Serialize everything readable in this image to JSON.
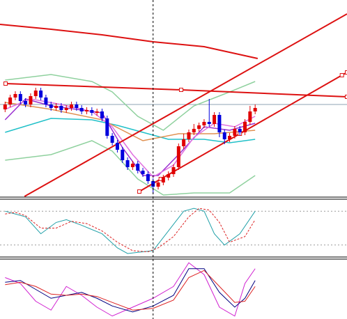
{
  "chart_data": [
    {
      "type": "candlestick",
      "xlim": [
        0,
        68
      ],
      "ylim": [
        0,
        282
      ],
      "up_color": "#e00000",
      "down_color": "#0000dd",
      "cursor_x": 30,
      "hline": {
        "value": 132,
        "color": "#8fa3b3"
      },
      "x": [
        1,
        2,
        3,
        4,
        5,
        6,
        7,
        8,
        9,
        10,
        11,
        12,
        13,
        14,
        15,
        16,
        17,
        18,
        19,
        20,
        21,
        22,
        23,
        24,
        25,
        26,
        27,
        28,
        29,
        30,
        31,
        32,
        33,
        34,
        35,
        36,
        37,
        38,
        39,
        40,
        41,
        42,
        43,
        44,
        45,
        46,
        47,
        48,
        49,
        50
      ],
      "open": [
        125,
        132,
        142,
        147,
        137,
        132,
        144,
        152,
        142,
        132,
        127,
        130,
        124,
        127,
        132,
        127,
        122,
        124,
        120,
        122,
        112,
        87,
        77,
        67,
        52,
        42,
        47,
        37,
        32,
        22,
        14,
        20,
        27,
        32,
        42,
        72,
        82,
        92,
        97,
        102,
        107,
        104,
        117,
        92,
        82,
        87,
        97,
        92,
        107,
        122
      ],
      "high": [
        136,
        146,
        151,
        151,
        141,
        148,
        156,
        156,
        146,
        136,
        134,
        134,
        131,
        136,
        136,
        131,
        128,
        128,
        126,
        126,
        116,
        91,
        81,
        71,
        56,
        51,
        51,
        41,
        36,
        26,
        24,
        31,
        36,
        46,
        76,
        90,
        96,
        104,
        106,
        111,
        140,
        121,
        121,
        96,
        91,
        101,
        101,
        111,
        130,
        132
      ],
      "low": [
        121,
        128,
        138,
        133,
        128,
        128,
        140,
        138,
        128,
        123,
        123,
        120,
        120,
        123,
        123,
        118,
        118,
        116,
        116,
        108,
        83,
        73,
        63,
        48,
        38,
        38,
        33,
        28,
        18,
        4,
        10,
        16,
        23,
        28,
        38,
        68,
        78,
        88,
        93,
        98,
        100,
        100,
        85,
        75,
        78,
        83,
        88,
        88,
        103,
        118
      ],
      "close": [
        132,
        142,
        147,
        137,
        132,
        144,
        152,
        142,
        132,
        127,
        130,
        124,
        127,
        132,
        127,
        122,
        124,
        120,
        122,
        112,
        87,
        77,
        67,
        52,
        42,
        47,
        37,
        32,
        22,
        14,
        20,
        27,
        32,
        42,
        72,
        82,
        92,
        97,
        102,
        107,
        104,
        117,
        92,
        82,
        87,
        97,
        92,
        107,
        122,
        127
      ],
      "lines": [
        {
          "color": "#8fd19e",
          "x": [
            1,
            10,
            18,
            22,
            27,
            32,
            38,
            45,
            50
          ],
          "values": [
            167,
            175,
            165,
            150,
            115,
            95,
            130,
            150,
            165
          ]
        },
        {
          "color": "#8fd19e",
          "x": [
            1,
            10,
            18,
            22,
            27,
            32,
            38,
            45,
            50
          ],
          "values": [
            52,
            60,
            80,
            65,
            25,
            2,
            5,
            5,
            30
          ]
        },
        {
          "color": "#20c0c8",
          "x": [
            1,
            10,
            18,
            23,
            28,
            33,
            40,
            45,
            50
          ],
          "values": [
            92,
            112,
            110,
            102,
            92,
            82,
            82,
            77,
            82
          ]
        },
        {
          "color": "#e09050",
          "x": [
            1,
            10,
            20,
            28,
            35,
            42,
            50
          ],
          "values": [
            135,
            125,
            110,
            80,
            90,
            90,
            95
          ]
        },
        {
          "color": "#9a30d0",
          "x": [
            1,
            5,
            10,
            15,
            20,
            24,
            28,
            31,
            35,
            40,
            45,
            50
          ],
          "values": [
            110,
            140,
            130,
            125,
            120,
            70,
            30,
            30,
            60,
            100,
            95,
            105
          ]
        },
        {
          "color": "#e070e0",
          "x": [
            1,
            6,
            12,
            18,
            22,
            26,
            30,
            34,
            38,
            42,
            46,
            50
          ],
          "values": [
            125,
            140,
            132,
            122,
            100,
            60,
            28,
            45,
            85,
            105,
            100,
            115
          ]
        },
        {
          "color": "#dd1111",
          "x": [
            0,
            10,
            20,
            30,
            40,
            50.5
          ],
          "values": [
            247,
            240,
            232,
            222,
            215,
            198
          ]
        },
        {
          "color": "#dd1111",
          "x": [
            1.1,
            35.5,
            68
          ],
          "values": [
            162,
            153,
            143
          ],
          "markers": true
        },
        {
          "color": "#dd1111",
          "x": [
            4.8,
            68
          ],
          "values": [
            0,
            262
          ]
        },
        {
          "color": "#dd1111",
          "x": [
            27.3,
            31.5,
            47,
            67,
            68
          ],
          "values": [
            7,
            25,
            90,
            174,
            178
          ],
          "markers": true
        }
      ]
    },
    {
      "type": "line",
      "xlim": [
        0,
        68
      ],
      "ylim": [
        0,
        100
      ],
      "levels": [
        80,
        20
      ],
      "series": [
        {
          "color": "#20a0a8",
          "dash": false,
          "x": [
            1,
            3,
            5,
            8,
            11,
            13,
            16,
            20,
            23,
            25,
            28,
            30,
            33,
            36,
            38,
            40,
            42,
            44,
            47,
            50
          ],
          "values": [
            80,
            75,
            70,
            40,
            60,
            65,
            55,
            40,
            15,
            5,
            8,
            10,
            45,
            80,
            85,
            80,
            40,
            20,
            40,
            80
          ]
        },
        {
          "color": "#dd2222",
          "dash": true,
          "x": [
            1,
            3,
            5,
            8,
            11,
            14,
            17,
            20,
            23,
            26,
            29,
            31,
            34,
            37,
            39,
            41,
            43,
            45,
            48,
            50
          ],
          "values": [
            75,
            78,
            72,
            50,
            50,
            62,
            58,
            45,
            25,
            10,
            8,
            15,
            35,
            70,
            85,
            82,
            60,
            25,
            35,
            65
          ]
        }
      ]
    },
    {
      "type": "line",
      "xlim": [
        0,
        68
      ],
      "ylim": [
        0,
        100
      ],
      "levels": [],
      "series": [
        {
          "color": "#d020d0",
          "dash": false,
          "x": [
            1,
            4,
            7,
            10,
            13,
            16,
            19,
            22,
            26,
            30,
            34,
            37,
            40,
            43,
            46,
            48,
            50
          ],
          "values": [
            70,
            60,
            30,
            15,
            55,
            40,
            20,
            5,
            20,
            35,
            55,
            95,
            75,
            20,
            5,
            60,
            85
          ]
        },
        {
          "color": "#000080",
          "dash": false,
          "x": [
            1,
            4,
            7,
            10,
            13,
            16,
            19,
            22,
            26,
            30,
            34,
            37,
            40,
            43,
            46,
            48,
            50
          ],
          "values": [
            62,
            65,
            50,
            35,
            40,
            45,
            35,
            22,
            12,
            22,
            40,
            85,
            85,
            45,
            20,
            35,
            65
          ]
        },
        {
          "color": "#dd2222",
          "dash": false,
          "x": [
            1,
            4,
            7,
            10,
            13,
            16,
            19,
            22,
            26,
            30,
            34,
            37,
            40,
            43,
            46,
            48,
            50
          ],
          "values": [
            58,
            62,
            55,
            42,
            40,
            42,
            38,
            28,
            15,
            18,
            32,
            70,
            82,
            55,
            28,
            30,
            55
          ]
        }
      ]
    }
  ]
}
